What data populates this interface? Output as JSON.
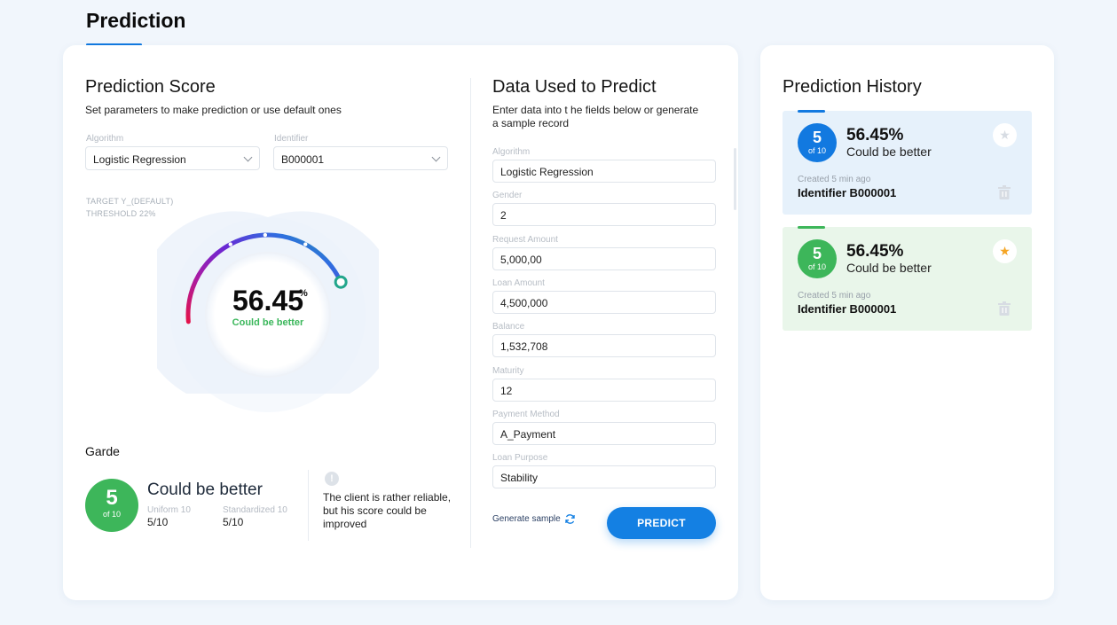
{
  "page": {
    "title": "Prediction"
  },
  "score_panel": {
    "title": "Prediction Score",
    "subtitle": "Set parameters to make prediction or use default ones",
    "algorithm_label": "Algorithm",
    "algorithm_value": "Logistic Regression",
    "identifier_label": "Identifier",
    "identifier_value": "B000001",
    "target_line": "TARGET Y_(DEFAULT)",
    "threshold_line": "THRESHOLD 22%",
    "score": "56.45",
    "score_percent_sign": "%",
    "score_fraction": 0.5645,
    "score_status": "Could be better"
  },
  "grade": {
    "title": "Garde",
    "value": "5",
    "of_text": "of 10",
    "status": "Could be better",
    "uniform_label": "Uniform 10",
    "uniform_value": "5/10",
    "standardized_label": "Standardized 10",
    "standardized_value": "5/10",
    "info_text": "The client is rather reliable, but his score could be improved"
  },
  "data_panel": {
    "title": "Data Used to Predict",
    "subtitle": "Enter data into t he fields below or generate a sample record",
    "fields": [
      {
        "label": "Algorithm",
        "value": "Logistic Regression"
      },
      {
        "label": "Gender",
        "value": "2"
      },
      {
        "label": "Request Amount",
        "value": "5,000,00"
      },
      {
        "label": "Loan Amount",
        "value": "4,500,000"
      },
      {
        "label": "Balance",
        "value": "1,532,708"
      },
      {
        "label": "Maturity",
        "value": "12"
      },
      {
        "label": "Payment Method",
        "value": "A_Payment"
      },
      {
        "label": "Loan Purpose",
        "value": "Stability"
      }
    ],
    "generate_sample_label": "Generate sample",
    "predict_label": "PREDICT"
  },
  "history": {
    "title": "Prediction History",
    "items": [
      {
        "grade": "5",
        "of_text": "of 10",
        "score": "56.45%",
        "status": "Could be better",
        "created": "Created 5 min ago",
        "identifier": "Identifier B000001",
        "starred": false,
        "accent": "#1279e0"
      },
      {
        "grade": "5",
        "of_text": "of 10",
        "score": "56.45%",
        "status": "Could be better",
        "created": "Created 5 min ago",
        "identifier": "Identifier B000001",
        "starred": true,
        "accent": "#3db65a"
      }
    ]
  },
  "colors": {
    "primary": "#1480e3",
    "good": "#3db65a",
    "star": "#f5a524"
  }
}
